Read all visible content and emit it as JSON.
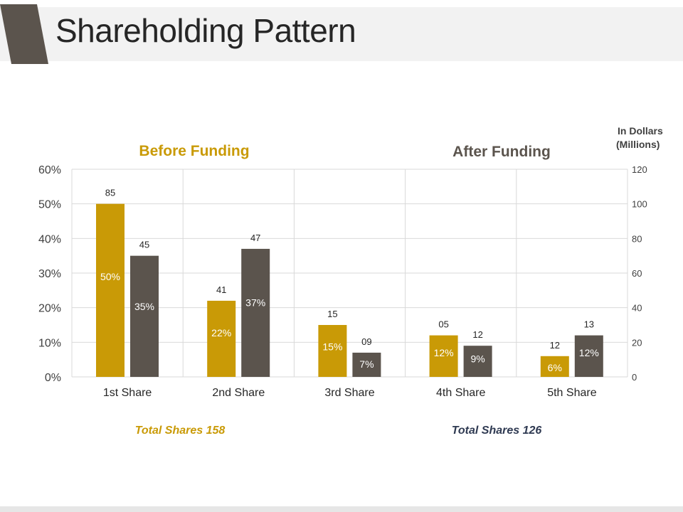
{
  "header": {
    "title": "Shareholding Pattern"
  },
  "colors": {
    "before": "#c99a06",
    "after": "#5b544d",
    "accent": "#5b544d",
    "grid": "#d9d9d9",
    "text": "#404040"
  },
  "chart_data": {
    "type": "bar",
    "categories": [
      "1st Share",
      "2nd Share",
      "3rd Share",
      "4th Share",
      "5th Share"
    ],
    "series": [
      {
        "name": "Before Funding",
        "percent_values": [
          50,
          22,
          15,
          12,
          6
        ],
        "percent_labels": [
          "50%",
          "22%",
          "15%",
          "12%",
          "6%"
        ],
        "dollar_labels": [
          "85",
          "41",
          "15",
          "05",
          "12"
        ]
      },
      {
        "name": "After Funding",
        "percent_values": [
          35,
          37,
          7,
          9,
          12
        ],
        "percent_labels": [
          "35%",
          "37%",
          "7%",
          "9%",
          "12%"
        ],
        "dollar_labels": [
          "45",
          "47",
          "09",
          "12",
          "13"
        ]
      }
    ],
    "y_left": {
      "ylim": [
        0,
        60
      ],
      "ticks": [
        "0%",
        "10%",
        "20%",
        "30%",
        "40%",
        "50%",
        "60%"
      ]
    },
    "y_right": {
      "ylim": [
        0,
        120
      ],
      "ticks": [
        "0",
        "20",
        "40",
        "60",
        "80",
        "100",
        "120"
      ],
      "label_line1": "In Dollars",
      "label_line2": "(Millions)"
    },
    "legend_before": "Before Funding",
    "legend_after": "After Funding",
    "total_before": "Total  Shares 158",
    "total_after": "Total  Shares 126"
  }
}
